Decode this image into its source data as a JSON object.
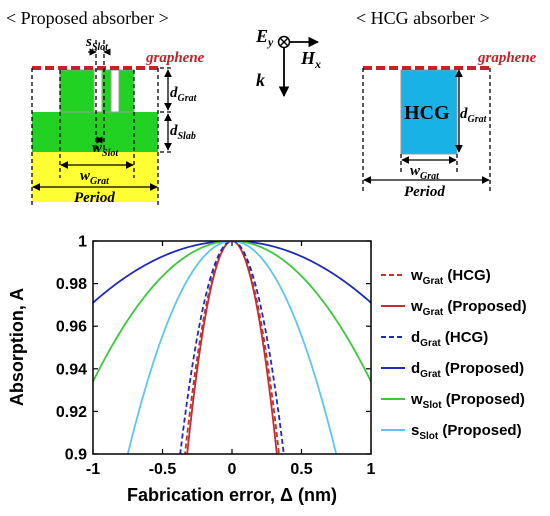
{
  "diagram": {
    "left_heading": "< Proposed absorber >",
    "right_heading": "< HCG absorber >",
    "graphene_label": "graphene",
    "hcg_label": "HCG",
    "period_label": "Period",
    "dim": {
      "s_slot": [
        "s",
        "Slot"
      ],
      "d_grat": [
        "d",
        "Grat"
      ],
      "d_slab": [
        "d",
        "Slab"
      ],
      "w_slot": [
        "w",
        "Slot"
      ],
      "w_grat": [
        "w",
        "Grat"
      ]
    },
    "axes_glyph": {
      "E": "E",
      "E_sub": "y",
      "H": "H",
      "H_sub": "x",
      "k": "k"
    },
    "colors": {
      "graphene": "#c8202a",
      "grating": "#22d222",
      "substrate": "#ffff33",
      "hcg": "#18b2e6",
      "grating_edge": "#9a9a9a"
    }
  },
  "chart_data": {
    "type": "line",
    "xlabel": "Fabrication error, Δ (nm)",
    "ylabel": "Absorption, A",
    "xlim": [
      -1,
      1
    ],
    "ylim": [
      0.9,
      1
    ],
    "xticks": [
      "-1",
      "-0.5",
      "0",
      "0.5",
      "1"
    ],
    "xtick_values": [
      -1,
      -0.5,
      0,
      0.5,
      1
    ],
    "yticks": [
      "0.9",
      "0.92",
      "0.94",
      "0.96",
      "0.98",
      "1"
    ],
    "ytick_values": [
      0.9,
      0.92,
      0.94,
      0.96,
      0.98,
      1
    ],
    "grid": false,
    "legend_position": "right, outside",
    "series": [
      {
        "name": "w_Grat (HCG)",
        "name_main": "w",
        "name_sub": "Grat",
        "name_tail": "(HCG)",
        "color": "#c0302e",
        "dash": true,
        "curvature": 0.875,
        "x_range": [
          -0.34,
          0.34
        ]
      },
      {
        "name": "w_Grat (Proposed)",
        "name_main": "w",
        "name_sub": "Grat",
        "name_tail": "(Proposed)",
        "color": "#c0302e",
        "dash": false,
        "curvature": 0.962,
        "x_range": [
          -0.322,
          0.322
        ]
      },
      {
        "name": "d_Grat (HCG)",
        "name_main": "d",
        "name_sub": "Grat",
        "name_tail": "(HCG)",
        "color": "#1f2ab8",
        "dash": true,
        "curvature": 0.72,
        "x_range": [
          -0.373,
          0.373
        ]
      },
      {
        "name": "d_Grat (Proposed)",
        "name_main": "d",
        "name_sub": "Grat",
        "name_tail": "(Proposed)",
        "color": "#1f2ab8",
        "dash": false,
        "curvature": 0.029,
        "x_range": [
          -1,
          1
        ]
      },
      {
        "name": "w_Slot (Proposed)",
        "name_main": "w",
        "name_sub": "Slot",
        "name_tail": "(Proposed)",
        "color": "#3cc83c",
        "dash": false,
        "curvature": 0.066,
        "x_range": [
          -1,
          1
        ]
      },
      {
        "name": "s_Slot (Proposed)",
        "name_main": "s",
        "name_sub": "Slot",
        "name_tail": "(Proposed)",
        "color": "#5cc6ee",
        "dash": false,
        "curvature": 0.178,
        "x_range": [
          -0.75,
          0.75
        ]
      }
    ]
  }
}
